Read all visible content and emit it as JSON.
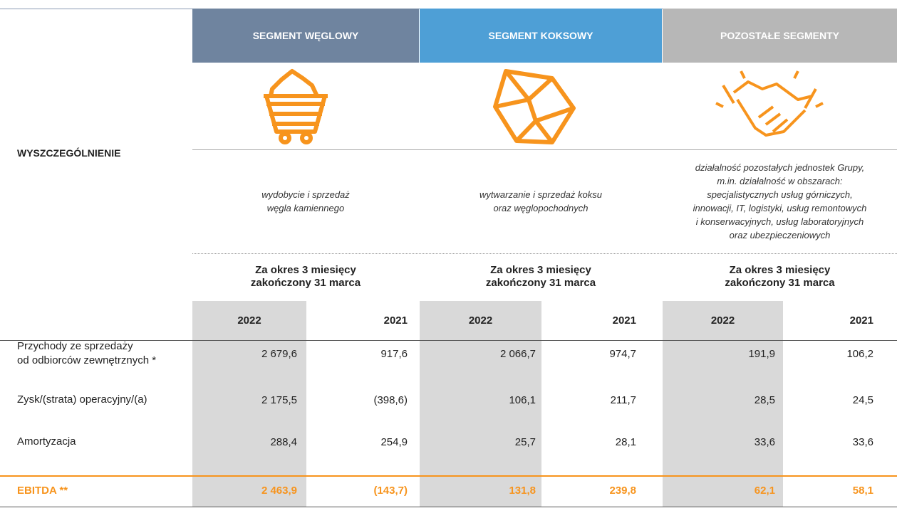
{
  "header": {
    "label": "WYSZCZEGÓLNIENIE"
  },
  "segments": [
    {
      "title": "SEGMENT WĘGLOWY",
      "description": [
        "wydobycie i sprzedaż",
        "węgla kamiennego"
      ],
      "period": [
        "Za okres 3 miesięcy",
        "zakończony 31 marca"
      ],
      "years": [
        "2022",
        "2021"
      ]
    },
    {
      "title": "SEGMENT KOKSOWY",
      "description": [
        "wytwarzanie i sprzedaż koksu",
        "oraz węglopochodnych"
      ],
      "period": [
        "Za okres 3 miesięcy",
        "zakończony 31 marca"
      ],
      "years": [
        "2022",
        "2021"
      ]
    },
    {
      "title": "POZOSTAŁE SEGMENTY",
      "description": [
        "działalność pozostałych jednostek Grupy,",
        "m.in. działalność w obszarach:",
        "specjalistycznych usług górniczych,",
        "innowacji, IT, logistyki, usług remontowych",
        "i konserwacyjnych, usług laboratoryjnych",
        "oraz ubezpieczeniowych"
      ],
      "period": [
        "Za okres 3 miesięcy",
        "zakończony 31 marca"
      ],
      "years": [
        "2022",
        "2021"
      ]
    }
  ],
  "rows": [
    {
      "label": [
        "Przychody ze sprzedaży",
        "od odbiorców zewnętrznych *"
      ],
      "values": [
        "2 679,6",
        "917,6",
        "2 066,7",
        "974,7",
        "191,9",
        "106,2"
      ]
    },
    {
      "label": [
        "Zysk/(strata) operacyjny/(a)"
      ],
      "values": [
        "2 175,5",
        "(398,6)",
        "106,1",
        "211,7",
        "28,5",
        "24,5"
      ]
    },
    {
      "label": [
        "Amortyzacja"
      ],
      "values": [
        "288,4",
        "254,9",
        "25,7",
        "28,1",
        "33,6",
        "33,6"
      ]
    }
  ],
  "total": {
    "label": "EBITDA **",
    "values": [
      "2 463,9",
      "(143,7)",
      "131,8",
      "239,8",
      "62,1",
      "58,1"
    ]
  }
}
